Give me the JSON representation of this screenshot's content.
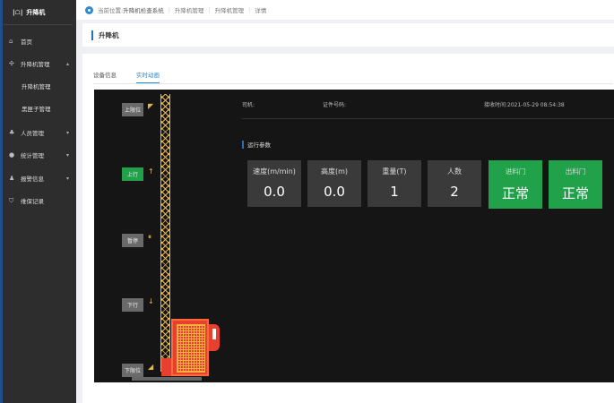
{
  "app": {
    "logo": "升降机"
  },
  "sidebar": {
    "items": [
      {
        "label": "首页",
        "icon": "home-icon"
      },
      {
        "label": "升降机管理",
        "icon": "elevator-icon",
        "expanded": true
      },
      {
        "label": "升降机管理",
        "sub": true
      },
      {
        "label": "黑匣子管理",
        "sub": true
      },
      {
        "label": "人员管理",
        "icon": "users-icon"
      },
      {
        "label": "统计管理",
        "icon": "user-icon"
      },
      {
        "label": "报警信息",
        "icon": "alarm-icon"
      },
      {
        "label": "维保记录",
        "icon": "shield-icon"
      }
    ]
  },
  "breadcrumb": {
    "prefix": "当前位置:",
    "items": [
      "升降机检查系统",
      "升降机管理",
      "升降机管理",
      "详情"
    ]
  },
  "page_title": "升降机",
  "tabs": [
    {
      "label": "设备信息"
    },
    {
      "label": "实时动画",
      "active": true
    }
  ],
  "controls": {
    "upper_limit": "上限位",
    "up": "上行",
    "stop": "暂停",
    "down": "下行",
    "lower_limit": "下限位"
  },
  "info": {
    "driver": "司机:",
    "cert": "证件号码:",
    "time": "接收时间:2021-05-29 08:54:38"
  },
  "section_title": "运行参数",
  "cards": [
    {
      "label": "速度(m/min)",
      "value": "0.0"
    },
    {
      "label": "高度(m)",
      "value": "0.0"
    },
    {
      "label": "重量(T)",
      "value": "1"
    },
    {
      "label": "人数",
      "value": "2"
    },
    {
      "label": "进料门",
      "value": "正常",
      "status": "ok"
    },
    {
      "label": "出料门",
      "value": "正常",
      "status": "ok"
    }
  ],
  "colors": {
    "accent": "#2a8bd6",
    "ok": "#21a24a",
    "tower": "#e8b64a",
    "cabin": "#e8402e"
  }
}
